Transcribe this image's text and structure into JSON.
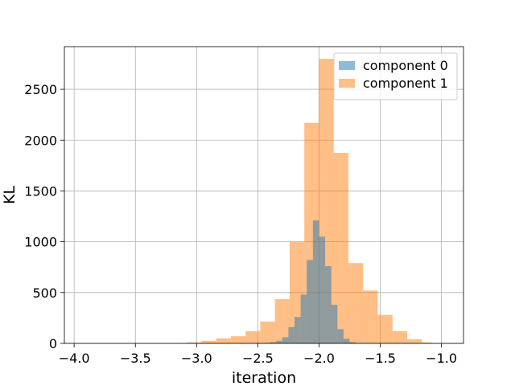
{
  "chart_data": {
    "type": "bar",
    "histogram": true,
    "xlabel": "iteration",
    "ylabel": "KL",
    "xlim": [
      -4.08,
      -0.82
    ],
    "ylim": [
      0,
      2920
    ],
    "xticks": [
      -4.0,
      -3.5,
      -3.0,
      -2.5,
      -2.0,
      -1.5,
      -1.0
    ],
    "xtick_labels": [
      "−4.0",
      "−3.5",
      "−3.0",
      "−2.5",
      "−2.0",
      "−1.5",
      "−1.0"
    ],
    "yticks": [
      0,
      500,
      1000,
      1500,
      2000,
      2500
    ],
    "ytick_labels": [
      "0",
      "500",
      "1000",
      "1500",
      "2000",
      "2500"
    ],
    "grid": true,
    "legend_position": "top-right",
    "series": [
      {
        "name": "component 1",
        "color": "#ff7f0e",
        "alpha": 0.5,
        "bins": [
          [
            -3.95,
            -3.08,
            3
          ],
          [
            -3.08,
            -2.96,
            10
          ],
          [
            -2.96,
            -2.84,
            25
          ],
          [
            -2.84,
            -2.72,
            50
          ],
          [
            -2.72,
            -2.6,
            70
          ],
          [
            -2.6,
            -2.48,
            120
          ],
          [
            -2.48,
            -2.36,
            215
          ],
          [
            -2.36,
            -2.24,
            435
          ],
          [
            -2.24,
            -2.12,
            1000
          ],
          [
            -2.12,
            -2.0,
            2170
          ],
          [
            -2.0,
            -1.88,
            2800
          ],
          [
            -1.88,
            -1.76,
            1875
          ],
          [
            -1.76,
            -1.64,
            790
          ],
          [
            -1.64,
            -1.52,
            520
          ],
          [
            -1.52,
            -1.4,
            280
          ],
          [
            -1.4,
            -1.28,
            120
          ],
          [
            -1.28,
            -1.16,
            40
          ],
          [
            -1.16,
            -1.08,
            10
          ]
        ]
      },
      {
        "name": "component 0",
        "color": "#1f77b4",
        "alpha": 0.5,
        "bins": [
          [
            -2.45,
            -2.4,
            5
          ],
          [
            -2.4,
            -2.35,
            12
          ],
          [
            -2.35,
            -2.3,
            25
          ],
          [
            -2.3,
            -2.25,
            60
          ],
          [
            -2.25,
            -2.2,
            160
          ],
          [
            -2.2,
            -2.15,
            260
          ],
          [
            -2.15,
            -2.1,
            480
          ],
          [
            -2.1,
            -2.05,
            820
          ],
          [
            -2.05,
            -2.0,
            1210
          ],
          [
            -2.0,
            -1.95,
            1050
          ],
          [
            -1.95,
            -1.9,
            760
          ],
          [
            -1.9,
            -1.85,
            380
          ],
          [
            -1.85,
            -1.8,
            140
          ],
          [
            -1.8,
            -1.75,
            45
          ],
          [
            -1.75,
            -1.7,
            12
          ]
        ]
      }
    ]
  }
}
